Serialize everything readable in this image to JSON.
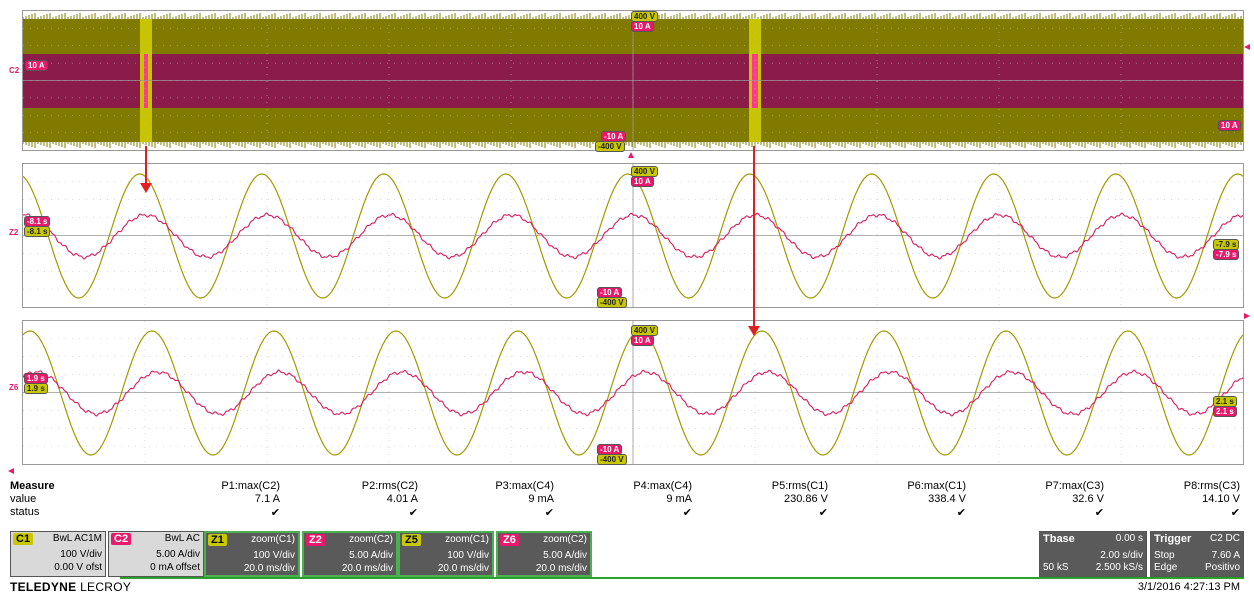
{
  "panels": {
    "top": {
      "label": "C2",
      "left_label": "10 A",
      "right_label": "10 A",
      "top_caps": [
        "400 V",
        "10 A"
      ],
      "bot_caps": [
        "-10 A",
        "-400 V"
      ]
    },
    "mid": {
      "label": "Z2",
      "left_caps": [
        "-8.1 s",
        "-8.1 s"
      ],
      "right_caps": [
        "-7.9 s",
        "-7.9 s"
      ],
      "top_caps": [
        "400 V",
        "10 A"
      ],
      "bot_caps": [
        "-10 A",
        "-400 V"
      ]
    },
    "bot": {
      "label": "Z6",
      "left_caps": [
        "1.9 s",
        "1.9 s"
      ],
      "right_caps": [
        "2.1 s",
        "2.1 s"
      ],
      "top_caps": [
        "400 V",
        "10 A"
      ],
      "bot_caps": [
        "-10 A",
        "-400 V"
      ]
    }
  },
  "measure": {
    "row_labels": [
      "Measure",
      "value",
      "status"
    ],
    "params": [
      {
        "name": "P1:max(C2)",
        "value": "7.1 A",
        "status": "✔"
      },
      {
        "name": "P2:rms(C2)",
        "value": "4.01 A",
        "status": "✔"
      },
      {
        "name": "P3:max(C4)",
        "value": "9 mA",
        "status": "✔"
      },
      {
        "name": "P4:max(C4)",
        "value": "9 mA",
        "status": "✔"
      },
      {
        "name": "P5:rms(C1)",
        "value": "230.86 V",
        "status": "✔"
      },
      {
        "name": "P6:max(C1)",
        "value": "338.4 V",
        "status": "✔"
      },
      {
        "name": "P7:max(C3)",
        "value": "32.6 V",
        "status": "✔"
      },
      {
        "name": "P8:rms(C3)",
        "value": "14.10 V",
        "status": "✔"
      }
    ]
  },
  "descriptors": [
    {
      "tag": "C1",
      "title": "BwL AC1M",
      "l1": "100 V/div",
      "l2": "0.00 V ofst"
    },
    {
      "tag": "C2",
      "title": "BwL AC",
      "l1": "5.00 A/div",
      "l2": "0 mA offset"
    },
    {
      "tag": "Z1",
      "title": "zoom(C1)",
      "l1": "100 V/div",
      "l2": "20.0 ms/div"
    },
    {
      "tag": "Z2",
      "title": "zoom(C2)",
      "l1": "5.00 A/div",
      "l2": "20.0 ms/div"
    },
    {
      "tag": "Z5",
      "title": "zoom(C1)",
      "l1": "100 V/div",
      "l2": "20.0 ms/div"
    },
    {
      "tag": "Z6",
      "title": "zoom(C2)",
      "l1": "5.00 A/div",
      "l2": "20.0 ms/div"
    }
  ],
  "timebase": {
    "title": "Tbase",
    "offset": "0.00 s",
    "l1": "2.00 s/div",
    "samples": "50 kS",
    "rate": "2.500 kS/s"
  },
  "trigger": {
    "title": "Trigger",
    "src": "C2 DC",
    "mode": "Stop",
    "level": "7.60 A",
    "type": "Edge",
    "slope": "Positivo"
  },
  "brand": {
    "bold": "TELEDYNE",
    "light": "LECROY"
  },
  "timestamp": "3/1/2016 4:27:13 PM",
  "colors": {
    "voltage": "#a09a00",
    "current": "#d81b60",
    "grid": "#bbb",
    "arrow": "#e02020"
  }
}
